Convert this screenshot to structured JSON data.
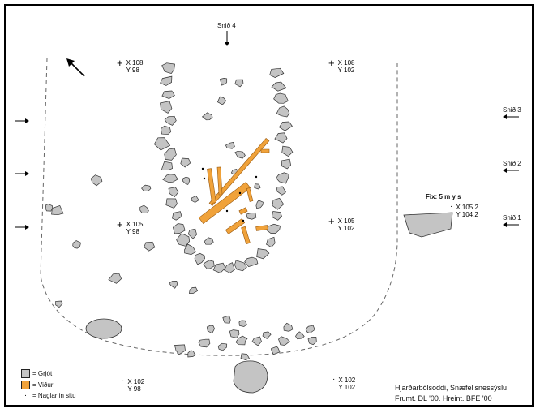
{
  "colors": {
    "stone_fill": "#c4c4c4",
    "stone_stroke": "#333333",
    "wood_fill": "#f0a23a",
    "wood_stroke": "#9a5a10",
    "outline": "#666666"
  },
  "section_labels": {
    "snid4": "Snið 4",
    "snid3": "Snið 3",
    "snid2": "Snið 2",
    "snid1": "Snið 1"
  },
  "fix_label": "Fix: 5 m y s",
  "fix_point": {
    "x": "X 105,2",
    "y": "Y 104,2"
  },
  "grid_points": [
    {
      "id": "x108-y98",
      "x": "X 108",
      "y": "Y 98",
      "marker": "+"
    },
    {
      "id": "x108-y102",
      "x": "X 108",
      "y": "Y 102",
      "marker": "+"
    },
    {
      "id": "x105-y98",
      "x": "X 105",
      "y": "Y 98",
      "marker": "+"
    },
    {
      "id": "x105-y102",
      "x": "X 105",
      "y": "Y 102",
      "marker": "+"
    },
    {
      "id": "x102-y98",
      "x": "X 102",
      "y": "Y 98",
      "marker": "·"
    },
    {
      "id": "x102-y102",
      "x": "X 102",
      "y": "Y 102",
      "marker": "·"
    }
  ],
  "legend": {
    "stone": "= Grjót",
    "wood": "= Viður",
    "nail": "= Naglar in situ"
  },
  "caption": {
    "line1": "Hjarðarbólsoddi, Snæfellsnessýslu",
    "line2": "Frumt. DL '00. Hreint. BFE '00"
  },
  "north_arrow": "north-arrow"
}
